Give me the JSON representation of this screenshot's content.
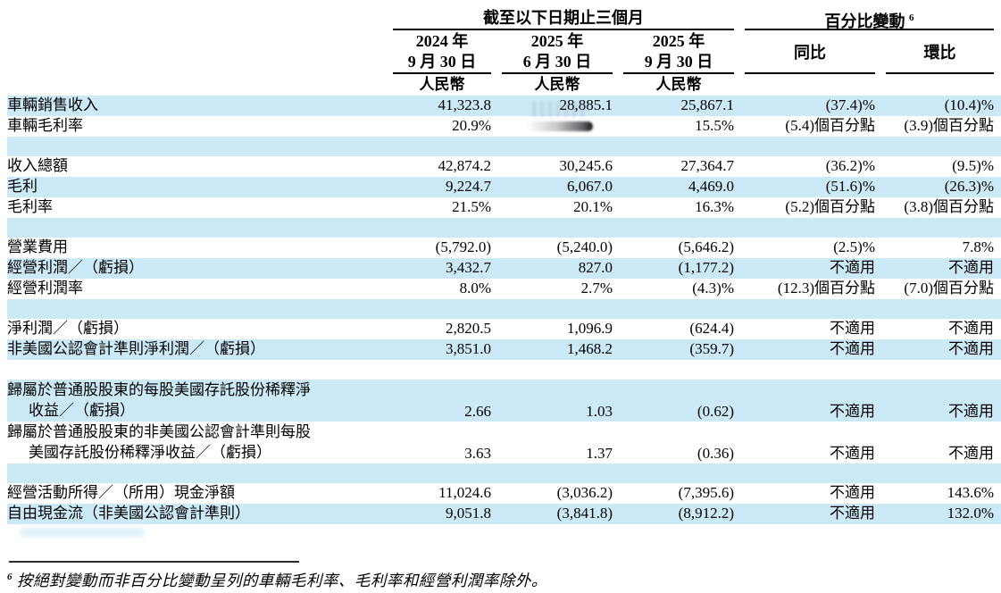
{
  "colors": {
    "row_highlight_blue": "#cce9f8",
    "rule_black": "#000000"
  },
  "table": {
    "group_headers": {
      "period": "截至以下日期止三個月",
      "pct_change": "百分比變動",
      "pct_change_sup": "6"
    },
    "columns": [
      {
        "line1": "2024 年",
        "line2": "9 月 30 日",
        "currency": "人民幣"
      },
      {
        "line1": "2025 年",
        "line2": "6 月 30 日",
        "currency": "人民幣"
      },
      {
        "line1": "2025 年",
        "line2": "9 月 30 日",
        "currency": "人民幣"
      },
      {
        "label": "同比"
      },
      {
        "label": "環比"
      }
    ],
    "rows": [
      {
        "type": "data",
        "shade": "blue",
        "label": "車輛銷售收入",
        "values": [
          "41,323.8",
          "28,885.1",
          "25,867.1",
          "(37.4)%",
          "(10.4)%"
        ]
      },
      {
        "type": "data",
        "shade": "white",
        "label": "車輛毛利率",
        "values": [
          "20.9%",
          "",
          "15.5%",
          "(5.4)個百分點",
          "(3.9)個百分點"
        ],
        "note": "col2 value obscured by smudge"
      },
      {
        "type": "spacer",
        "shade": "blue"
      },
      {
        "type": "data",
        "shade": "white",
        "label": "收入總額",
        "values": [
          "42,874.2",
          "30,245.6",
          "27,364.7",
          "(36.2)%",
          "(9.5)%"
        ]
      },
      {
        "type": "data",
        "shade": "blue",
        "label": "毛利",
        "values": [
          "9,224.7",
          "6,067.0",
          "4,469.0",
          "(51.6)%",
          "(26.3)%"
        ]
      },
      {
        "type": "data",
        "shade": "white",
        "label": "毛利率",
        "values": [
          "21.5%",
          "20.1%",
          "16.3%",
          "(5.2)個百分點",
          "(3.8)個百分點"
        ]
      },
      {
        "type": "spacer",
        "shade": "blue"
      },
      {
        "type": "data",
        "shade": "white",
        "label": "營業費用",
        "values": [
          "(5,792.0)",
          "(5,240.0)",
          "(5,646.2)",
          "(2.5)%",
          "7.8%"
        ]
      },
      {
        "type": "data",
        "shade": "blue",
        "label": "經營利潤／（虧損）",
        "values": [
          "3,432.7",
          "827.0",
          "(1,177.2)",
          "不適用",
          "不適用"
        ]
      },
      {
        "type": "data",
        "shade": "white",
        "label": "經營利潤率",
        "values": [
          "8.0%",
          "2.7%",
          "(4.3)%",
          "(12.3)個百分點",
          "(7.0)個百分點"
        ]
      },
      {
        "type": "spacer",
        "shade": "blue"
      },
      {
        "type": "data",
        "shade": "white",
        "label": "淨利潤／（虧損）",
        "values": [
          "2,820.5",
          "1,096.9",
          "(624.4)",
          "不適用",
          "不適用"
        ]
      },
      {
        "type": "data",
        "shade": "blue",
        "label": "非美國公認會計準則淨利潤／（虧損）",
        "values": [
          "3,851.0",
          "1,468.2",
          "(359.7)",
          "不適用",
          "不適用"
        ]
      },
      {
        "type": "spacer",
        "shade": "white"
      },
      {
        "type": "data2",
        "shade": "blue",
        "label_line1": "歸屬於普通股股東的每股美國存託股份稀釋淨",
        "label_line2": "收益／（虧損）",
        "values": [
          "2.66",
          "1.03",
          "(0.62)",
          "不適用",
          "不適用"
        ]
      },
      {
        "type": "data2",
        "shade": "white",
        "label_line1": "歸屬於普通股股東的非美國公認會計準則每股",
        "label_line2": "美國存託股份稀釋淨收益／（虧損）",
        "values": [
          "3.63",
          "1.37",
          "(0.36)",
          "不適用",
          "不適用"
        ]
      },
      {
        "type": "spacer",
        "shade": "blue"
      },
      {
        "type": "data",
        "shade": "white",
        "label": "經營活動所得／（所用）現金淨額",
        "values": [
          "11,024.6",
          "(3,036.2)",
          "(7,395.6)",
          "不適用",
          "143.6%"
        ]
      },
      {
        "type": "data",
        "shade": "blue",
        "label": "自由現金流（非美國公認會計準則）",
        "values": [
          "9,051.8",
          "(3,841.8)",
          "(8,912.2)",
          "不適用",
          "132.0%"
        ]
      }
    ]
  },
  "footnote": {
    "sup": "6",
    "text": "按絕對變動而非百分比變動呈列的車輛毛利率、毛利率和經營利潤率除外。"
  }
}
